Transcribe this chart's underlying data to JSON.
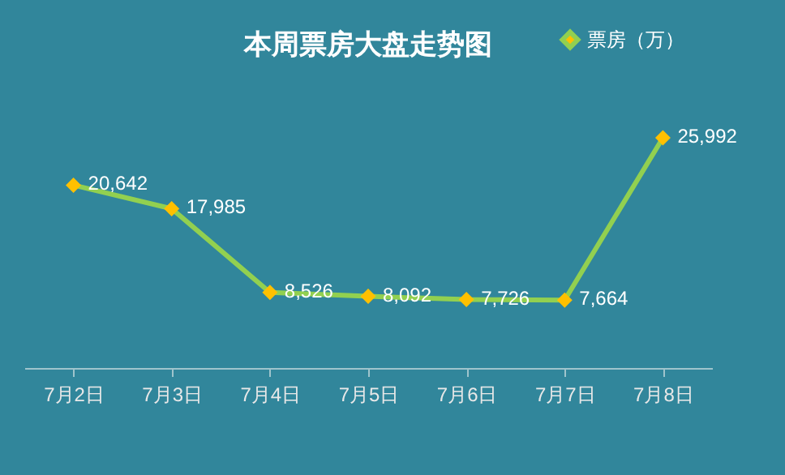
{
  "chart_data": {
    "type": "line",
    "title": "本周票房大盘走势图",
    "categories": [
      "7月2日",
      "7月3日",
      "7月4日",
      "7月5日",
      "7月6日",
      "7月7日",
      "7月8日"
    ],
    "series": [
      {
        "name": "票房（万）",
        "color": "#92d050",
        "colors": [
          "#ffc000",
          "#ffc000",
          "#ffc000",
          "#ffc000",
          "#ffc000",
          "#ffc000",
          "#ffc000"
        ],
        "values": [
          20642,
          17985,
          8526,
          8092,
          7726,
          7664,
          25992
        ],
        "value_labels": [
          "20,642",
          "17,985",
          "8,526",
          "8,092",
          "7,726",
          "7,664",
          "25,992"
        ]
      }
    ],
    "marker": "diamond",
    "legend": "top right",
    "grid": false,
    "line_style": "solid"
  }
}
